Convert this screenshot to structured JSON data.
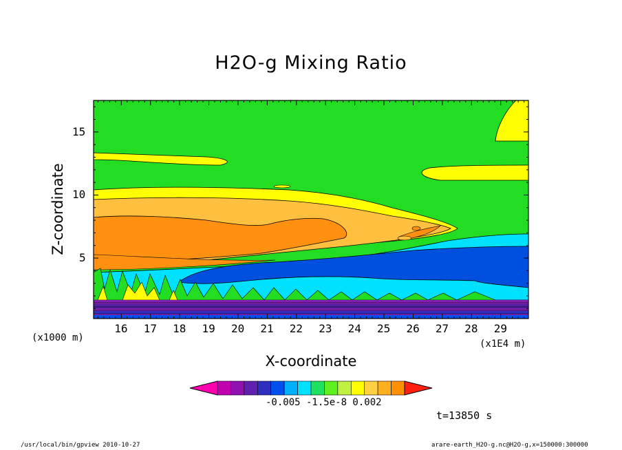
{
  "chart_data": {
    "type": "heatmap",
    "title": "H2O-g Mixing Ratio",
    "xlabel": "X-coordinate",
    "ylabel": "Z-coordinate",
    "x_unit_label": "(x1000 m)",
    "x_scale_label": "(x1E4 m)",
    "x_ticks": [
      "16",
      "17",
      "18",
      "19",
      "20",
      "21",
      "22",
      "23",
      "24",
      "25",
      "26",
      "27",
      "28",
      "29"
    ],
    "y_ticks": [
      "5",
      "10",
      "15"
    ],
    "xlim": [
      15.05,
      29.95
    ],
    "ylim": [
      0.2,
      17.5
    ],
    "colorbar": {
      "tick_labels": "-0.005 -1.5e-8  0.002",
      "colors": [
        "#ff00b0",
        "#c000b0",
        "#9010b0",
        "#6020b0",
        "#3030c0",
        "#0050f0",
        "#00b0ff",
        "#00e0ff",
        "#20e060",
        "#60f020",
        "#c0f040",
        "#ffff00",
        "#ffd040",
        "#ffb020",
        "#ff9000",
        "#ff2010"
      ]
    },
    "regions": [
      {
        "name": "upper-background",
        "color": "#22dd22"
      },
      {
        "name": "top-right-moist-band",
        "color": "#ffff00"
      },
      {
        "name": "mid-level-moist-layer",
        "color": "#ffc040"
      },
      {
        "name": "mid-level-core",
        "color": "#ff9010"
      },
      {
        "name": "cyan-layer",
        "color": "#00e0ff"
      },
      {
        "name": "dry-blue-layer",
        "color": "#0050e0"
      },
      {
        "name": "surface-dry-layer",
        "color": "#8020b0"
      }
    ],
    "annotation": "t=13850 s"
  },
  "footer": {
    "left": "/usr/local/bin/gpview  2010-10-27",
    "right": "arare-earth_H2O-g.nc@H2O-g,x=150000:300000"
  }
}
